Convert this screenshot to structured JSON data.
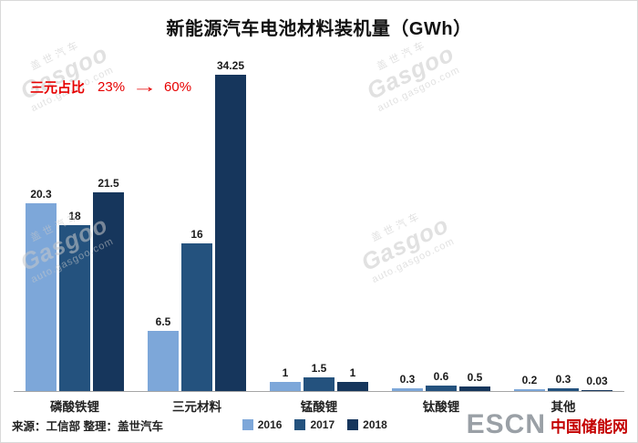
{
  "title": "新能源汽车电池材料装机量（GWh）",
  "annotation": {
    "label": "三元占比",
    "from": "23%",
    "arrow": "→",
    "to": "60%",
    "color": "#e60000"
  },
  "chart_data": {
    "type": "bar",
    "title": "新能源汽车电池材料装机量（GWh）",
    "categories": [
      "磷酸铁锂",
      "三元材料",
      "锰酸锂",
      "钛酸锂",
      "其他"
    ],
    "series": [
      {
        "name": "2016",
        "color": "#7da7d9",
        "values": [
          20.3,
          6.5,
          1,
          0.3,
          0.2
        ]
      },
      {
        "name": "2017",
        "color": "#24527e",
        "values": [
          18,
          16,
          1.5,
          0.6,
          0.3
        ]
      },
      {
        "name": "2018",
        "color": "#16365c",
        "values": [
          21.5,
          34.25,
          1,
          0.5,
          0.03
        ]
      }
    ],
    "ylim": [
      0,
      34.25
    ],
    "grid": false,
    "value_labels": true,
    "legend_position": "bottom",
    "annotation": "三元占比 23% → 60%"
  },
  "footer": {
    "source": "来源：工信部 整理：盖世汽车"
  },
  "logo": {
    "name": "ESCN",
    "site": "中国储能网"
  },
  "watermark": {
    "brand": "盖世汽车",
    "word": "Gasgoo",
    "url": "auto.gasgoo.com"
  }
}
